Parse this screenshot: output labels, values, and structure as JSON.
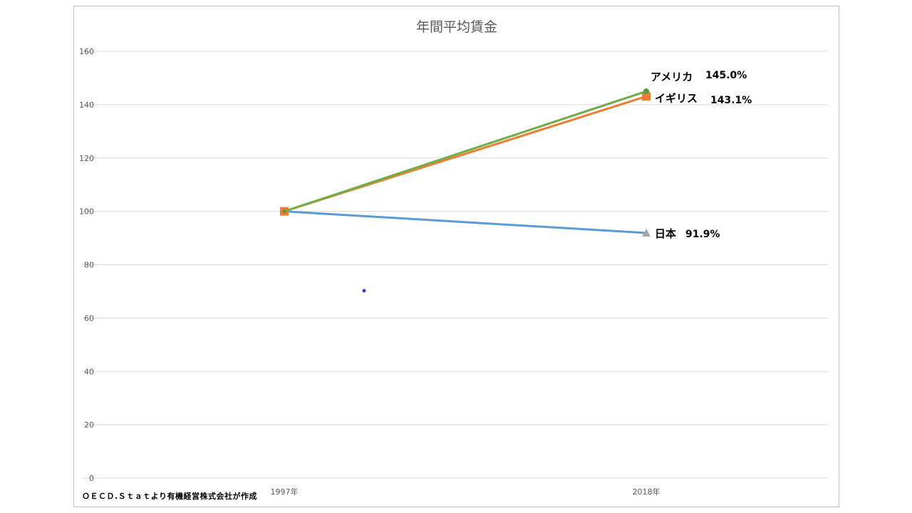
{
  "chart_data": {
    "type": "line",
    "title": "年間平均賃金",
    "categories": [
      "1997年",
      "2018年"
    ],
    "ylim": [
      0,
      160
    ],
    "yticks": [
      0,
      20,
      40,
      60,
      80,
      100,
      120,
      140,
      160
    ],
    "grid": true,
    "series": [
      {
        "name": "日本",
        "values": [
          100,
          91.9
        ],
        "label": "91.9%",
        "color": "#5b9bd5",
        "marker": "triangle",
        "marker_color": "#a5a5a5"
      },
      {
        "name": "イギリス",
        "values": [
          100,
          143.1
        ],
        "label": "143.1%",
        "color": "#ed7d31",
        "marker": "square",
        "marker_color": "#ed7d31"
      },
      {
        "name": "アメリカ",
        "values": [
          100,
          145.0
        ],
        "label": "145.0%",
        "color": "#70ad47",
        "marker": "circle",
        "marker_color": "#5a9a3a"
      }
    ],
    "source_note": "ＯＥＣＤ.Ｓｔａｔより有機経営株式会社が作成"
  }
}
